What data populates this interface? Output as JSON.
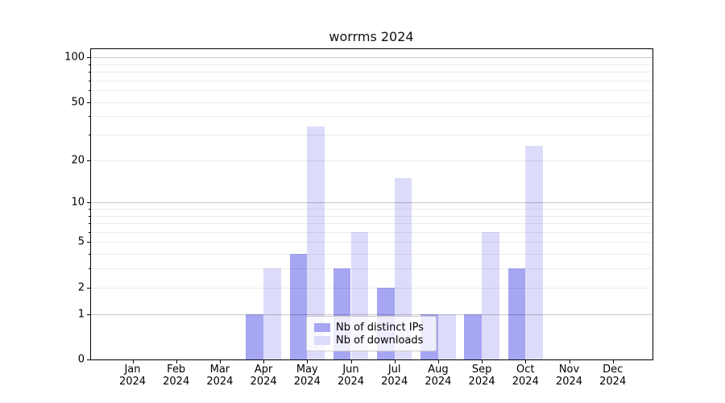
{
  "chart_data": {
    "type": "bar",
    "title": "worrms 2024",
    "categories": [
      "Jan",
      "Feb",
      "Mar",
      "Apr",
      "May",
      "Jun",
      "Jul",
      "Aug",
      "Sep",
      "Oct",
      "Nov",
      "Dec"
    ],
    "year": "2024",
    "series": [
      {
        "name": "Nb of distinct IPs",
        "color": "#a6a6f2",
        "values": [
          0,
          0,
          0,
          1,
          4,
          3,
          2,
          1,
          1,
          3,
          0,
          0
        ]
      },
      {
        "name": "Nb of downloads",
        "color": "#dcdcfa",
        "values": [
          0,
          0,
          0,
          3,
          34,
          6,
          15,
          1,
          6,
          25,
          0,
          0
        ]
      }
    ],
    "yscale": "log1p",
    "yticks": [
      0,
      1,
      2,
      5,
      10,
      20,
      50,
      100
    ],
    "ylim": [
      0,
      113
    ],
    "grid": {
      "major": [
        1,
        10,
        100
      ],
      "minor": [
        2,
        3,
        4,
        5,
        6,
        7,
        8,
        9,
        20,
        30,
        40,
        50,
        60,
        70,
        80,
        90
      ]
    },
    "legend_position": "inside-bottom-center"
  },
  "colors": {
    "axis": "#000000",
    "major_grid": "#c7c7c7",
    "minor_grid": "#ececec",
    "background": "#ffffff"
  }
}
